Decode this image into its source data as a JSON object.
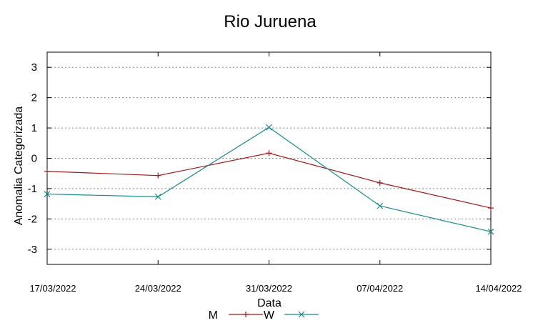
{
  "chart_data": {
    "type": "line",
    "title": "Rio Juruena",
    "xlabel": "Data",
    "ylabel": "Anomalia Categorizada",
    "categories": [
      "17/03/2022",
      "24/03/2022",
      "31/03/2022",
      "07/04/2022",
      "14/04/2022"
    ],
    "ylim": [
      -3.5,
      3.5
    ],
    "yticks": [
      -3,
      -2,
      -1,
      0,
      1,
      2,
      3
    ],
    "grid": true,
    "legend": "bottom-center",
    "series": [
      {
        "name": "M",
        "color": "#a01818",
        "marker": "plus",
        "values": [
          -0.43,
          -0.57,
          0.17,
          -0.81,
          -1.64
        ]
      },
      {
        "name": "W",
        "color": "#1a8a8a",
        "marker": "cross",
        "values": [
          -1.18,
          -1.27,
          1.02,
          -1.57,
          -2.42
        ]
      }
    ]
  }
}
